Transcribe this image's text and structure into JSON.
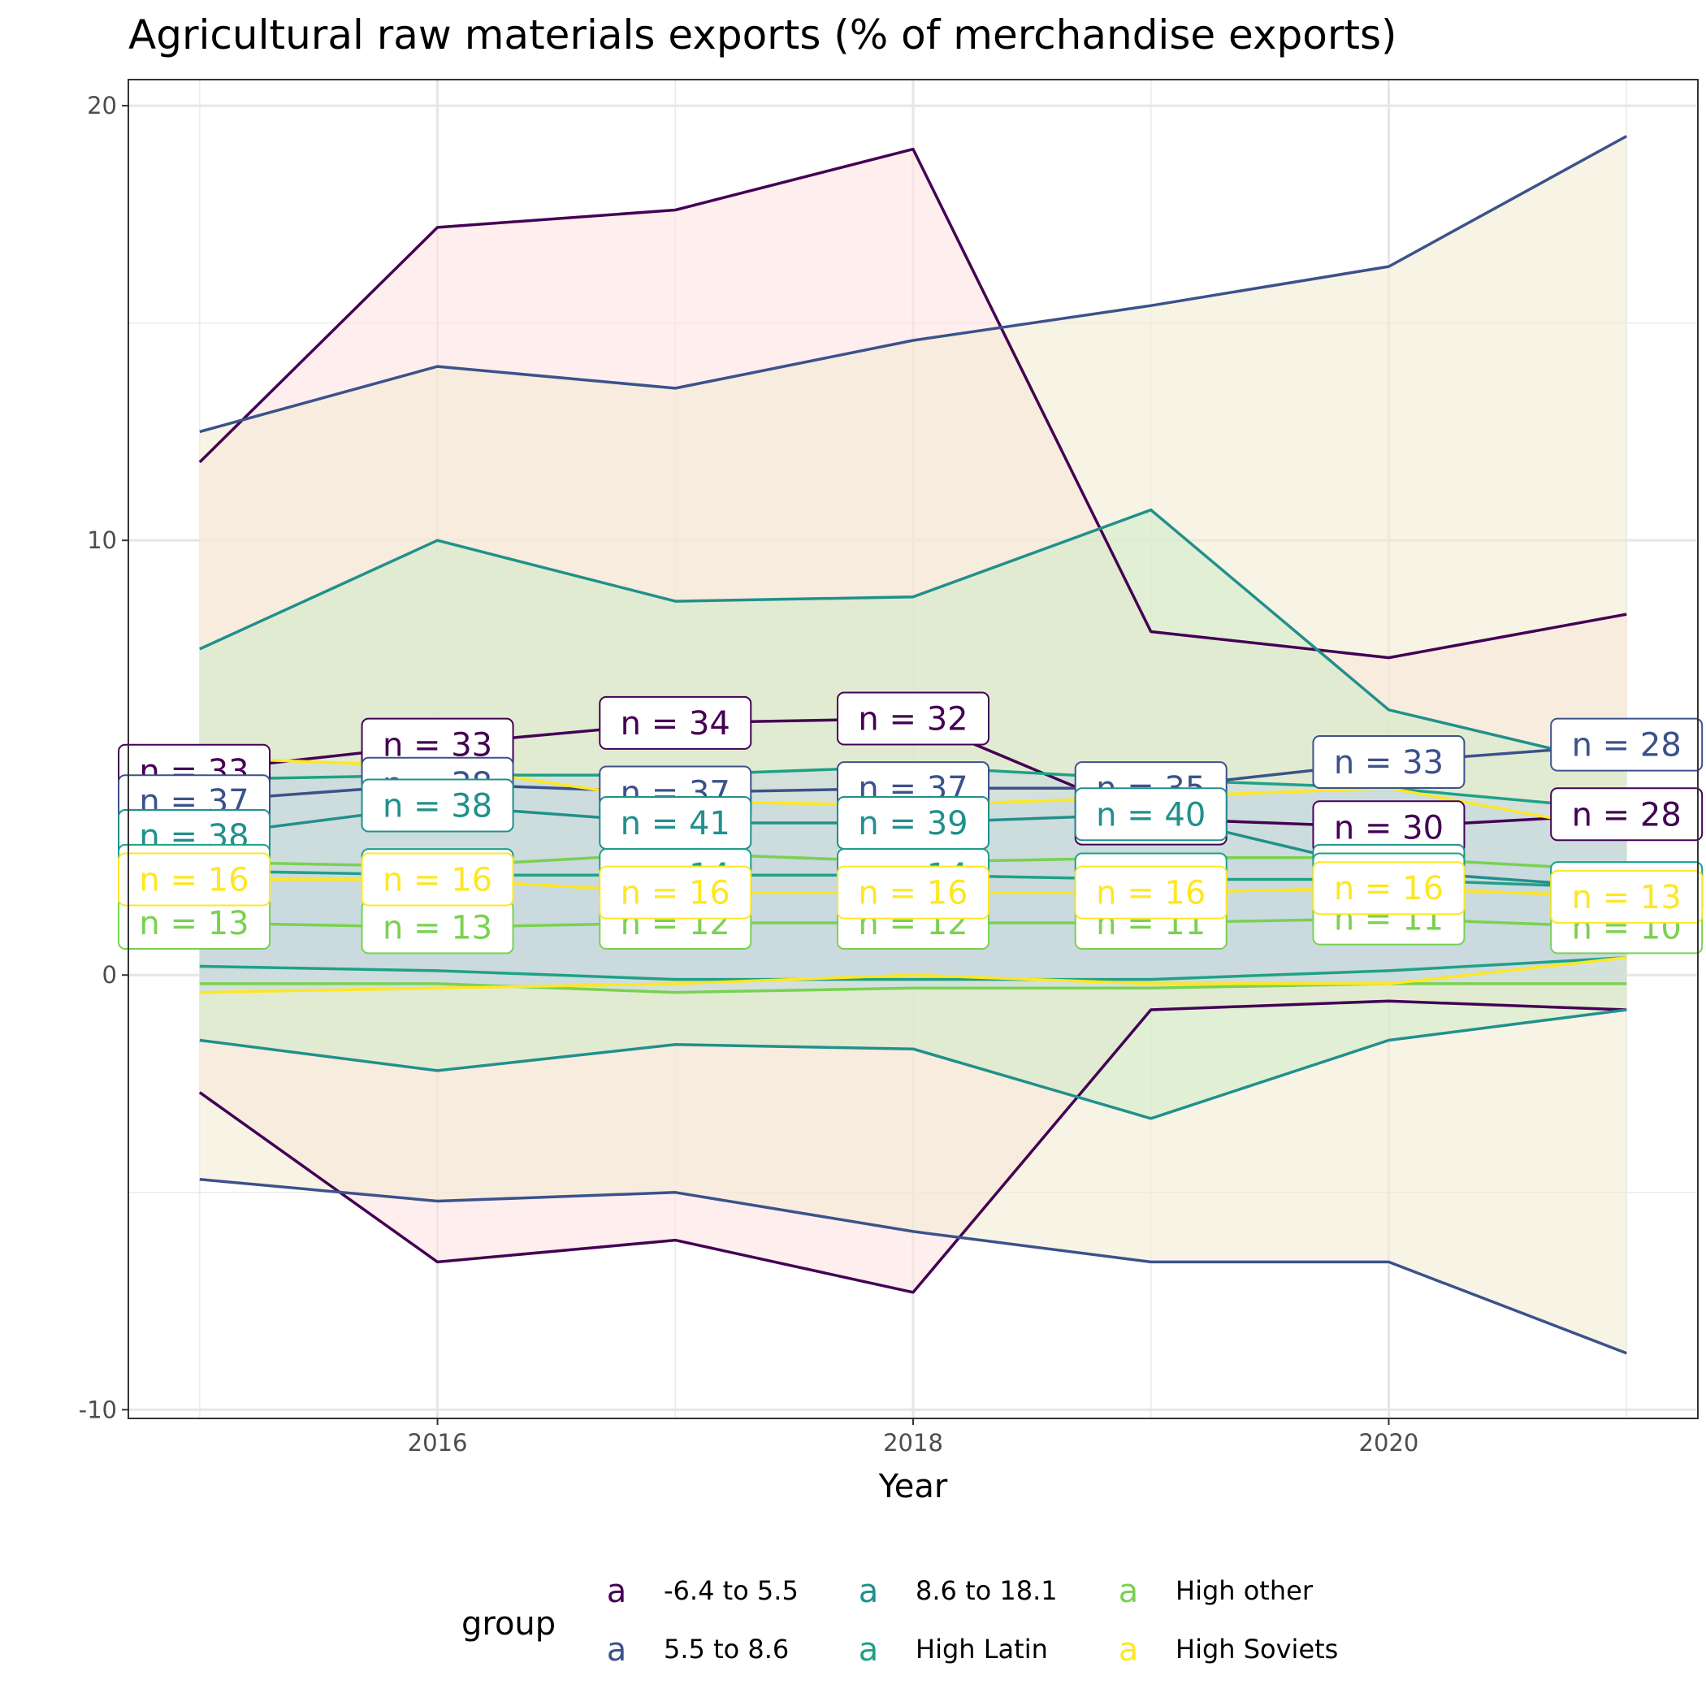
{
  "chart_data": {
    "type": "line",
    "title": "Agricultural raw materials exports (% of merchandise exports)",
    "xlabel": "Year",
    "ylabel": "",
    "xlim": [
      2014.7,
      2021.3
    ],
    "ylim": [
      -10.2,
      20.6
    ],
    "x_ticks": [
      2016,
      2018,
      2020
    ],
    "y_ticks": [
      -10,
      0,
      10,
      20
    ],
    "grid": true,
    "legend": {
      "title": "group",
      "position": "bottom",
      "key_glyph": "a"
    },
    "x": [
      2015,
      2016,
      2017,
      2018,
      2019,
      2020,
      2021
    ],
    "series": [
      {
        "name": "-6.4 to 5.5",
        "color": "#440154",
        "fill": "#FFE0E0",
        "mean": [
          4.7,
          5.3,
          5.8,
          5.9,
          3.6,
          3.4,
          3.7
        ],
        "mid_upper": [
          4.7,
          5.3,
          5.8,
          5.9,
          3.6,
          3.4,
          3.7
        ],
        "mid_lower": [
          4.7,
          5.3,
          5.8,
          5.9,
          3.6,
          3.4,
          3.7
        ],
        "upper": [
          11.8,
          17.2,
          17.6,
          19.0,
          7.9,
          7.3,
          8.3
        ],
        "lower": [
          -2.7,
          -6.6,
          -6.1,
          -7.3,
          -0.8,
          -0.6,
          -0.8
        ],
        "labels": [
          "n = 33",
          "n = 33",
          "n = 34",
          "n = 32",
          "n = 34",
          "n = 30",
          "n = 28"
        ]
      },
      {
        "name": "5.5 to 8.6",
        "color": "#3B528B",
        "fill": "#F0EBD0",
        "mean": [
          4.0,
          4.4,
          4.2,
          4.3,
          4.3,
          4.9,
          5.3
        ],
        "mid_upper": [
          4.0,
          4.4,
          4.2,
          4.3,
          4.3,
          4.9,
          5.3
        ],
        "mid_lower": [
          4.0,
          4.4,
          4.2,
          4.3,
          4.3,
          4.9,
          5.3
        ],
        "upper": [
          12.5,
          14.0,
          13.5,
          14.6,
          15.4,
          16.3,
          19.3
        ],
        "lower": [
          -4.7,
          -5.2,
          -5.0,
          -5.9,
          -6.6,
          -6.6,
          -8.7
        ],
        "labels": [
          "n = 37",
          "n = 38",
          "n = 37",
          "n = 37",
          "n = 35",
          "n = 33",
          "n = 28"
        ]
      },
      {
        "name": "8.6 to 18.1",
        "color": "#21908C",
        "fill": "#D0EBC8",
        "mean": [
          3.2,
          3.9,
          3.5,
          3.5,
          3.7,
          2.4,
          2.0
        ],
        "mid_upper": [
          3.2,
          3.9,
          3.5,
          3.5,
          3.7,
          2.4,
          2.0
        ],
        "mid_lower": [
          3.2,
          3.9,
          3.5,
          3.5,
          3.7,
          2.4,
          2.0
        ],
        "upper": [
          7.5,
          10.0,
          8.6,
          8.7,
          10.7,
          6.1,
          4.8
        ],
        "lower": [
          -1.5,
          -2.2,
          -1.6,
          -1.7,
          -3.3,
          -1.5,
          -0.8
        ],
        "labels": [
          "n = 38",
          "n = 38",
          "n = 41",
          "n = 39",
          "n = 40",
          "n = 40",
          "n = 40"
        ]
      },
      {
        "name": "High Latin",
        "color": "#1FA187",
        "fill": "#C8D8E0",
        "mean": [
          2.4,
          2.3,
          2.3,
          2.3,
          2.2,
          2.2,
          2.0
        ],
        "mid_upper": [
          4.5,
          4.6,
          4.6,
          4.8,
          4.5,
          4.3,
          3.8
        ],
        "mid_lower": [
          0.2,
          0.1,
          -0.1,
          -0.1,
          -0.1,
          0.1,
          0.4
        ],
        "upper": [
          4.5,
          4.6,
          4.6,
          4.8,
          4.5,
          4.3,
          3.8
        ],
        "lower": [
          0.2,
          0.1,
          -0.1,
          -0.1,
          -0.1,
          0.1,
          0.4
        ],
        "labels": [
          "n = 14",
          "n = 14",
          "n = 14",
          "n = 14",
          "n = 14",
          "n = 14",
          "n = 14"
        ]
      },
      {
        "name": "High other",
        "color": "#7AD151",
        "fill": "#C8D8E0",
        "mean": [
          1.2,
          1.1,
          1.2,
          1.2,
          1.2,
          1.3,
          1.1
        ],
        "mid_upper": [
          2.6,
          2.5,
          2.8,
          2.6,
          2.7,
          2.7,
          2.4
        ],
        "mid_lower": [
          -0.2,
          -0.2,
          -0.4,
          -0.3,
          -0.3,
          -0.2,
          -0.2
        ],
        "upper": [
          2.6,
          2.5,
          2.8,
          2.6,
          2.7,
          2.7,
          2.4
        ],
        "lower": [
          -0.2,
          -0.2,
          -0.4,
          -0.3,
          -0.3,
          -0.2,
          -0.2
        ],
        "labels": [
          "n = 13",
          "n = 13",
          "n = 12",
          "n = 12",
          "n = 11",
          "n = 11",
          "n = 10"
        ]
      },
      {
        "name": "High Soviets",
        "color": "#FDE725",
        "fill": "#C8D8E0",
        "mean": [
          2.2,
          2.2,
          1.9,
          1.9,
          1.9,
          2.0,
          1.8
        ],
        "mid_upper": [
          5.0,
          4.8,
          4.0,
          3.9,
          4.1,
          4.3,
          3.3
        ],
        "mid_lower": [
          -0.4,
          -0.3,
          -0.2,
          0.0,
          -0.2,
          -0.2,
          0.4
        ],
        "upper": [
          5.0,
          4.8,
          4.0,
          3.9,
          4.1,
          4.3,
          3.3
        ],
        "lower": [
          -0.4,
          -0.3,
          -0.2,
          0.0,
          -0.2,
          -0.2,
          0.4
        ],
        "labels": [
          "n = 16",
          "n = 16",
          "n = 16",
          "n = 16",
          "n = 16",
          "n = 16",
          "n = 13"
        ]
      }
    ]
  }
}
